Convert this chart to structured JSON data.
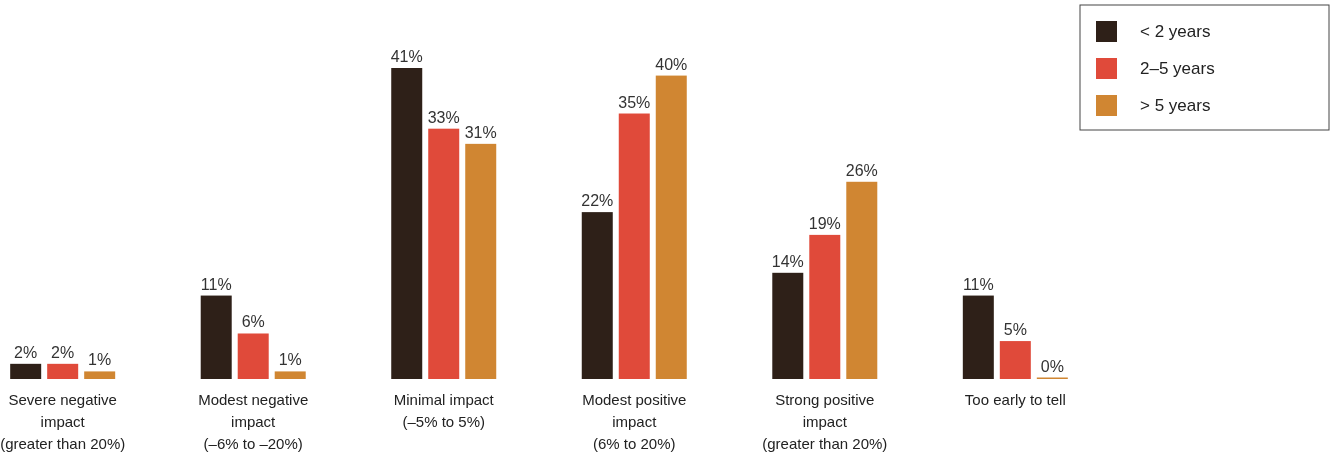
{
  "chart_data": {
    "type": "bar",
    "categories": [
      "Severe negative\nimpact\n(greater than 20%)",
      "Modest negative\nimpact\n(–6% to –20%)",
      "Minimal impact\n(–5% to 5%)",
      "Modest positive\nimpact\n(6% to 20%)",
      "Strong positive\nimpact\n(greater than 20%)",
      "Too early to tell"
    ],
    "series": [
      {
        "name": "< 2 years",
        "color": "#2e2018",
        "values": [
          2,
          11,
          41,
          22,
          14,
          11
        ],
        "value_labels": [
          "2%",
          "11%",
          "41%",
          "22%",
          "14%",
          "11%"
        ]
      },
      {
        "name": "2–5 years",
        "color": "#e04a3a",
        "values": [
          2,
          6,
          33,
          35,
          19,
          5
        ],
        "value_labels": [
          "2%",
          "6%",
          "33%",
          "35%",
          "19%",
          "5%"
        ]
      },
      {
        "name": "> 5 years",
        "color": "#d08632",
        "values": [
          1,
          1,
          31,
          40,
          26,
          0
        ],
        "value_labels": [
          "1%",
          "1%",
          "31%",
          "40%",
          "26%",
          "0%"
        ]
      }
    ],
    "legend": "top right"
  }
}
